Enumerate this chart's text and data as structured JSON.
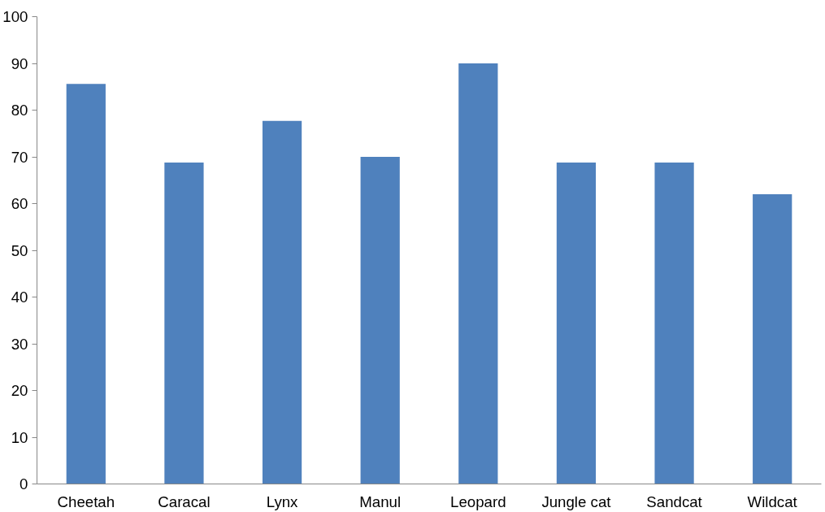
{
  "chart_data": {
    "type": "bar",
    "categories": [
      "Cheetah",
      "Caracal",
      "Lynx",
      "Manul",
      "Leopard",
      "Jungle cat",
      "Sandcat",
      "Wildcat"
    ],
    "values": [
      85.6,
      68.8,
      77.7,
      70,
      90,
      68.8,
      68.8,
      62
    ],
    "color": "#4f81bd",
    "ylim": [
      0,
      100
    ],
    "yticks": [
      0,
      10,
      20,
      30,
      40,
      50,
      60,
      70,
      80,
      90,
      100
    ],
    "grid": false
  }
}
